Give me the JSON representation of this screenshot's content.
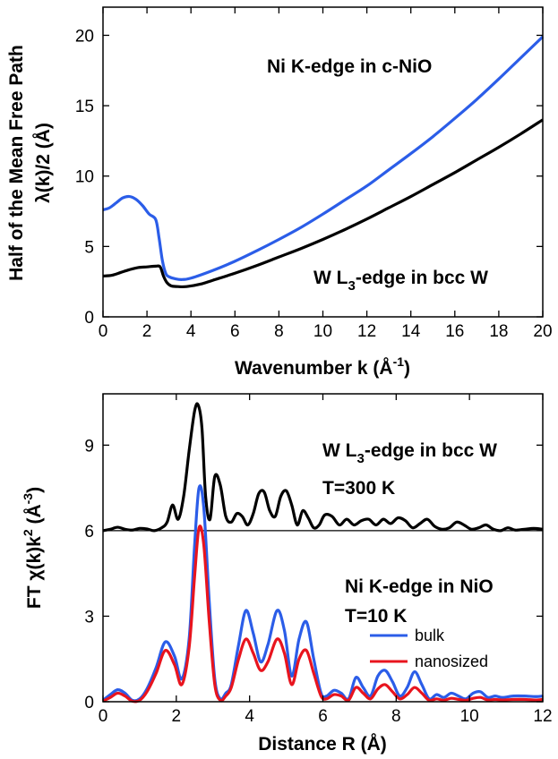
{
  "chart_data": [
    {
      "type": "line",
      "xlabel": "Wavenumber k (Å",
      "xlabel_sup": "-1",
      "xlabel_end": ")",
      "ylabel_line1": "Half of the Mean Free Path",
      "ylabel_line2": "λ(k)/2 (Å)",
      "xlim": [
        0,
        20
      ],
      "ylim": [
        0,
        22
      ],
      "xticks": [
        0,
        2,
        4,
        6,
        8,
        10,
        12,
        14,
        16,
        18,
        20
      ],
      "yticks": [
        0,
        5,
        10,
        15,
        20
      ],
      "annotations": [
        {
          "text": "Ni K-edge in c-NiO"
        },
        {
          "text_a": "W L",
          "sub": "3",
          "text_b": "-edge in bcc W"
        }
      ],
      "series": [
        {
          "name": "Ni K-edge in c-NiO",
          "color": "#2b5de8",
          "x": [
            0,
            0.3,
            0.6,
            0.9,
            1.2,
            1.5,
            1.8,
            2.1,
            2.4,
            2.55,
            2.7,
            2.85,
            3.0,
            3.3,
            3.6,
            4,
            5,
            6,
            7,
            8,
            9,
            10,
            11,
            12,
            13,
            14,
            15,
            16,
            17,
            18,
            19,
            20
          ],
          "y": [
            7.6,
            7.75,
            8.1,
            8.45,
            8.55,
            8.35,
            7.9,
            7.3,
            6.9,
            5.6,
            4.0,
            3.1,
            2.85,
            2.7,
            2.65,
            2.75,
            3.3,
            3.95,
            4.7,
            5.5,
            6.35,
            7.3,
            8.3,
            9.3,
            10.45,
            11.6,
            12.8,
            14.1,
            15.45,
            16.9,
            18.4,
            19.9
          ]
        },
        {
          "name": "W L3-edge in bcc W",
          "color": "#000000",
          "x": [
            0,
            0.4,
            0.8,
            1.2,
            1.6,
            2.0,
            2.4,
            2.6,
            2.75,
            2.9,
            3.1,
            3.4,
            3.8,
            4.5,
            5,
            6,
            7,
            8,
            9,
            10,
            11,
            12,
            13,
            14,
            15,
            16,
            17,
            18,
            19,
            20
          ],
          "y": [
            2.9,
            2.95,
            3.15,
            3.35,
            3.5,
            3.55,
            3.6,
            3.55,
            2.9,
            2.45,
            2.2,
            2.15,
            2.15,
            2.35,
            2.6,
            3.1,
            3.65,
            4.25,
            4.85,
            5.5,
            6.2,
            6.95,
            7.75,
            8.55,
            9.4,
            10.25,
            11.15,
            12.05,
            13.0,
            14.0
          ]
        }
      ]
    },
    {
      "type": "line",
      "xlabel": "Distance R (Å)",
      "ylabel_a": "FT χ(k)k",
      "ylabel_sup": "2",
      "ylabel_b": " (Å",
      "ylabel_sup2": "-3",
      "ylabel_c": ")",
      "xlim": [
        0,
        12
      ],
      "ylim": [
        0,
        10.8
      ],
      "xticks": [
        0,
        2,
        4,
        6,
        8,
        10,
        12
      ],
      "yticks": [
        0,
        3,
        6,
        9
      ],
      "annotations": [
        {
          "text_a": "W L",
          "sub": "3",
          "text_b": "-edge in bcc W"
        },
        {
          "text": "T=300 K"
        },
        {
          "text": "Ni K-edge in NiO"
        },
        {
          "text": "T=10 K"
        }
      ],
      "legend": [
        {
          "label": "bulk",
          "color": "#2b5de8"
        },
        {
          "label": "nanosized",
          "color": "#e8141e"
        }
      ],
      "baseline": 6,
      "series": [
        {
          "name": "W L3-edge in bcc W (T=300 K)",
          "color": "#000000",
          "x": [
            0,
            0.2,
            0.4,
            0.6,
            0.8,
            1.0,
            1.2,
            1.4,
            1.6,
            1.75,
            1.9,
            2.05,
            2.2,
            2.35,
            2.5,
            2.6,
            2.7,
            2.8,
            2.92,
            3.05,
            3.2,
            3.35,
            3.5,
            3.65,
            3.8,
            3.95,
            4.1,
            4.25,
            4.4,
            4.55,
            4.7,
            4.85,
            5.0,
            5.15,
            5.3,
            5.45,
            5.6,
            5.75,
            5.9,
            6.05,
            6.25,
            6.45,
            6.65,
            6.85,
            7.05,
            7.25,
            7.45,
            7.65,
            7.85,
            8.05,
            8.25,
            8.45,
            8.65,
            8.85,
            9.05,
            9.25,
            9.45,
            9.65,
            9.85,
            10.05,
            10.25,
            10.45,
            10.65,
            10.85,
            11.05,
            11.25,
            11.5,
            11.75,
            12.0
          ],
          "y": [
            6.0,
            6.05,
            6.12,
            6.05,
            6.02,
            6.08,
            6.06,
            6.0,
            6.1,
            6.3,
            6.9,
            6.4,
            7.2,
            8.8,
            10.2,
            10.4,
            9.6,
            7.2,
            6.4,
            7.9,
            7.6,
            6.5,
            6.3,
            6.6,
            6.5,
            6.2,
            6.6,
            7.3,
            7.35,
            6.7,
            6.5,
            7.2,
            7.4,
            6.9,
            6.2,
            6.7,
            6.45,
            6.1,
            6.2,
            6.55,
            6.5,
            6.2,
            6.4,
            6.2,
            6.35,
            6.4,
            6.2,
            6.4,
            6.25,
            6.45,
            6.35,
            6.1,
            6.25,
            6.4,
            6.15,
            6.05,
            6.1,
            6.3,
            6.2,
            6.05,
            6.1,
            6.2,
            6.05,
            6.0,
            6.1,
            6.02,
            6.05,
            6.08,
            6.05
          ]
        },
        {
          "name": "bulk",
          "color": "#2b5de8",
          "x": [
            0,
            0.2,
            0.4,
            0.6,
            0.8,
            1.0,
            1.2,
            1.45,
            1.7,
            1.95,
            2.15,
            2.35,
            2.5,
            2.62,
            2.75,
            2.9,
            3.05,
            3.2,
            3.35,
            3.5,
            3.7,
            3.9,
            4.1,
            4.3,
            4.5,
            4.75,
            4.95,
            5.15,
            5.35,
            5.55,
            5.75,
            5.95,
            6.1,
            6.3,
            6.5,
            6.7,
            6.9,
            7.1,
            7.3,
            7.5,
            7.7,
            7.9,
            8.1,
            8.3,
            8.5,
            8.7,
            8.9,
            9.1,
            9.3,
            9.5,
            9.7,
            9.9,
            10.1,
            10.3,
            10.5,
            10.7,
            10.9,
            11.2,
            11.5,
            11.8,
            12.0
          ],
          "y": [
            0.05,
            0.25,
            0.42,
            0.3,
            0.05,
            0.1,
            0.45,
            1.2,
            2.1,
            1.6,
            0.8,
            2.2,
            5.5,
            7.5,
            6.8,
            3.5,
            0.8,
            0.1,
            0.3,
            0.6,
            2.0,
            3.2,
            2.4,
            1.4,
            2.0,
            3.2,
            2.5,
            0.9,
            2.2,
            2.8,
            1.5,
            0.3,
            0.2,
            0.4,
            0.3,
            0.1,
            0.85,
            0.5,
            0.2,
            0.9,
            1.1,
            0.7,
            0.2,
            0.5,
            1.05,
            0.6,
            0.1,
            0.25,
            0.15,
            0.3,
            0.2,
            0.1,
            0.3,
            0.35,
            0.15,
            0.2,
            0.15,
            0.2,
            0.2,
            0.18,
            0.2
          ]
        },
        {
          "name": "nanosized",
          "color": "#e8141e",
          "x": [
            0,
            0.2,
            0.4,
            0.6,
            0.8,
            1.0,
            1.2,
            1.45,
            1.7,
            1.95,
            2.15,
            2.35,
            2.5,
            2.62,
            2.75,
            2.9,
            3.05,
            3.2,
            3.35,
            3.5,
            3.7,
            3.9,
            4.1,
            4.3,
            4.5,
            4.75,
            4.95,
            5.15,
            5.35,
            5.55,
            5.75,
            5.95,
            6.1,
            6.3,
            6.5,
            6.7,
            6.9,
            7.1,
            7.3,
            7.5,
            7.7,
            7.9,
            8.1,
            8.3,
            8.5,
            8.7,
            8.9,
            9.1,
            9.3,
            9.5,
            9.7,
            9.9,
            10.1,
            10.3,
            10.5,
            10.7,
            10.9,
            11.2,
            11.5,
            11.8,
            12.0
          ],
          "y": [
            0.02,
            0.15,
            0.3,
            0.2,
            0.02,
            0.05,
            0.35,
            1.0,
            1.8,
            1.3,
            0.6,
            1.9,
            4.4,
            6.1,
            5.5,
            2.8,
            0.6,
            0.05,
            0.2,
            0.5,
            1.5,
            2.2,
            1.7,
            1.1,
            1.4,
            2.2,
            1.7,
            0.6,
            1.5,
            1.8,
            1.0,
            0.2,
            0.1,
            0.25,
            0.2,
            0.05,
            0.5,
            0.3,
            0.1,
            0.45,
            0.6,
            0.35,
            0.1,
            0.25,
            0.5,
            0.3,
            0.05,
            0.1,
            0.05,
            0.12,
            0.08,
            0.05,
            0.12,
            0.15,
            0.06,
            0.08,
            0.06,
            0.08,
            0.08,
            0.06,
            0.08
          ]
        }
      ]
    }
  ]
}
